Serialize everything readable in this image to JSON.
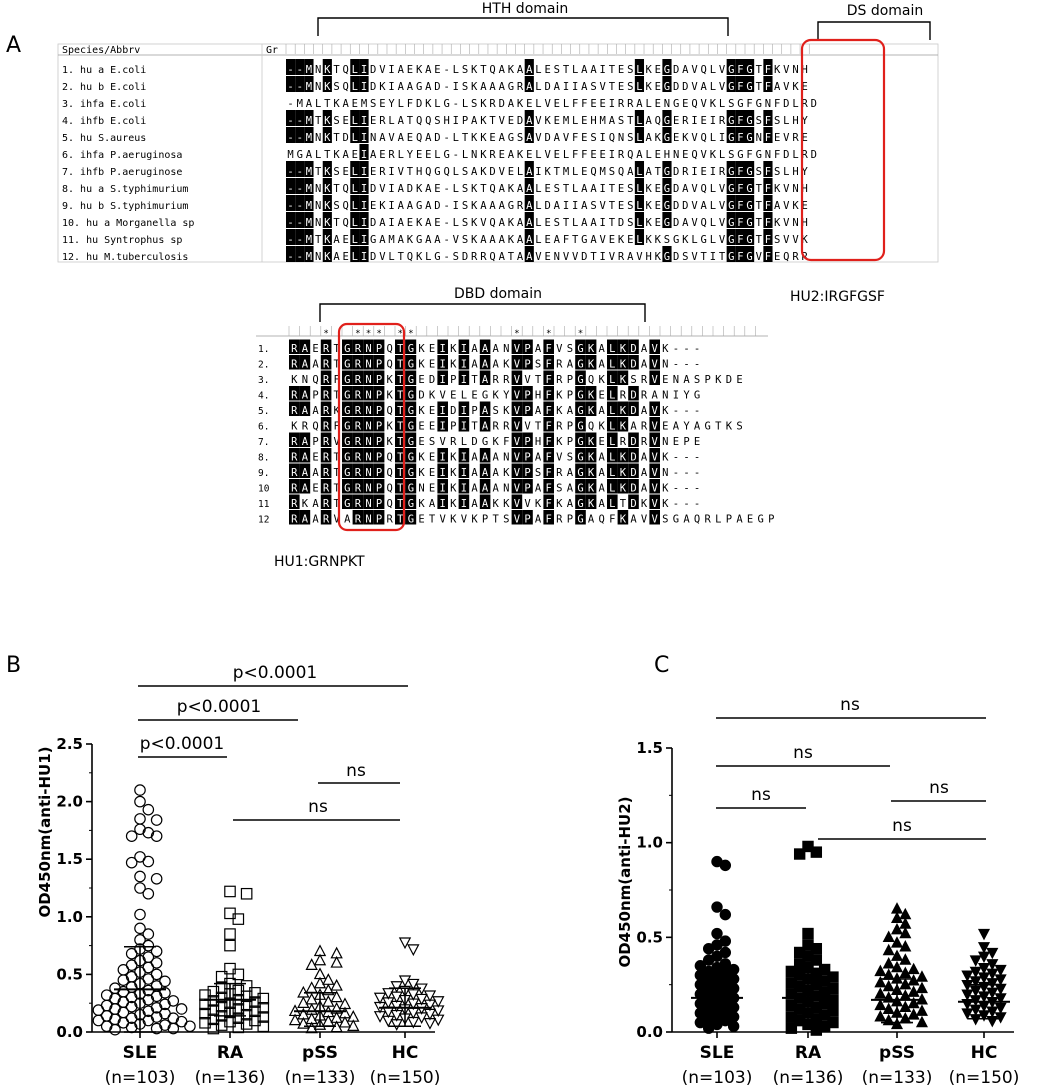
{
  "panel_labels": {
    "a": "A",
    "b": "B",
    "c": "C"
  },
  "alignment": {
    "header_species": "Species/Abbrv",
    "header_group": "Gr",
    "domains": {
      "hth": "HTH domain",
      "ds": "DS domain",
      "dbd": "DBD domain"
    },
    "motif_labels": {
      "hu2": "HU2:IRGFGSF",
      "hu1": "HU1:GRNPKT"
    },
    "species": [
      "1. hu a E.coli",
      "2. hu b E.coli",
      "3. ihfa E.coli",
      "4. ihfb E.coli",
      "5. hu S.aureus",
      "6. ihfa P.aeruginosa",
      "7. ihfb P.aeruginose",
      "8. hu a S.typhimurium",
      "9. hu b S.typhimurium",
      "10. hu a Morganella sp",
      "11. hu Syntrophus sp",
      "12. hu M.tuberculosis"
    ],
    "top_sequences": [
      "--MNKTQLIDVIAEKAE-LSKTQAKAALESTLAAITESLKEGDAVQLVGFGTFKVNH",
      "--MNKSQLIDKIAAGAD-ISKAAAGRALDAIIASVTESLKEGDDVALVGFGTFAVKE",
      "-MALTKAEMSEYLFDKLG-LSKRDAKELVELFFEEIRRALENGEQVKLSGFGNFDLRD",
      "--MTKSELIERLATQQSHIPAKTVEDAVKEMLEHMASTLAQGERIEIRGFGSFSLHY",
      "--MNKTDLINAVAEQAD-LTKKEAGSAVDAVFESIQNSLAKGEKVQLIGFGNFEVRE",
      "MGALTKAEIAERLYEELG-LNKREAKELVELFFEEIRQALEHNEQVKLSGFGNFDLRD",
      "--MTKSELIERIVTHQGQLSAKDVELAIKTMLEQMSQALATGDRIEIRGFGSFSLHY",
      "--MNKTQLIDVIADKAE-LSKTQAKAALESTLAAITESLKEGDAVQLVGFGTFKVNH",
      "--MNKSQLIEKIAAGAD-ISKAAAGRALDAIIASVTESLKEGDDVALVGFGTFAVKE",
      "--MNKTQLIDAIAEKAE-LSKVQAKAALESTLAAITDSLKEGDAVQLVGFGTFKVNH",
      "--MTKAELIGAMAKGAA-VSKAAAKAALEAFTGAVEKELKKSGKLGLVGFGTFSVVK",
      "--MNKAELIDVLTQKLG-SDRRQATAAVENVVDTIVRAVHKGDSVTITGFGVFEQRR"
    ],
    "bottom_row_numbers": [
      "1.",
      "2.",
      "3.",
      "4.",
      "5.",
      "6.",
      "7.",
      "8.",
      "9.",
      "10",
      "11",
      "12"
    ],
    "bottom_sequences": [
      "RAERTGRNPQTGKEIKIAAANVPAFVSGKALKDAVK---",
      "RAARTGRNPQTGKEIKIAAAKVPSFRAGKALKDAVN---",
      "KNQRFGRNPKTGEDIPITARRVVTFRPGQKLKSRVENASPKDE",
      "RAPRTGRNPKTGDKVELEGKYVPHFKPGKELRDRANIYG",
      "RAARKGRNPQTGKEIDIPASKVPAFKAGKALKDAVK---",
      "KRQRFGRNPKTGEEIPITARRVVTFRPGQKLKARVEAYAGTKS",
      "RAPRVGRNPKTGESVRLDGKFVPHFKPGKELRDRVNEPE",
      "RAERTGRNPQTGKEIKIAAANVPAFVSGKALKDAVK---",
      "RAARTGRNPQTGKEIKIAAAKVPSFRAGKALKDAVN---",
      "RAERTGRNPQTGNEIKIAAANVPAFSAGKALKDAVK---",
      "RKARTGRNPQTGKAIKIAAKKVVKFKAGKALTDKVK---",
      "RAARVARNPRTGETVKVKPTSVPAFRPGAQFKAVVSGAQRLPAEGP"
    ]
  },
  "panel_b": {
    "ylabel": "OD450nm(anti-HU1)",
    "groups": [
      "SLE",
      "RA",
      "pSS",
      "HC"
    ],
    "ns": [
      "(n=103)",
      "(n=136)",
      "(n=133)",
      "(n=150)"
    ],
    "comparisons": [
      "p<0.0001",
      "p<0.0001",
      "p<0.0001",
      "ns",
      "ns"
    ]
  },
  "panel_c": {
    "ylabel": "OD450nm(anti-HU2)",
    "groups": [
      "SLE",
      "RA",
      "pSS",
      "HC"
    ],
    "ns": [
      "(n=103)",
      "(n=136)",
      "(n=133)",
      "(n=150)"
    ],
    "comparisons": [
      "ns",
      "ns",
      "ns",
      "ns",
      "ns"
    ]
  },
  "chart_data": [
    {
      "type": "scatter",
      "title": "",
      "xlabel": "",
      "ylabel": "OD450nm(anti-HU1)",
      "ylim": [
        0,
        2.5
      ],
      "yticks": [
        "0.0",
        "0.5",
        "1.0",
        "1.5",
        "2.0",
        "2.5"
      ],
      "categories": [
        "SLE",
        "RA",
        "pSS",
        "HC"
      ],
      "sample_sizes": [
        103,
        136,
        133,
        150
      ],
      "markers": [
        "open-circle",
        "open-square",
        "open-triangle-up",
        "open-triangle-down"
      ],
      "mean": [
        0.37,
        0.28,
        0.18,
        0.21
      ],
      "sd_upper": [
        0.74,
        0.42,
        0.34,
        0.38
      ],
      "sd_lower": [
        0.0,
        0.14,
        0.05,
        0.05
      ],
      "series": [
        {
          "values": [
            2.1,
            2.0,
            1.93,
            1.85,
            1.84,
            1.76,
            1.73,
            1.7,
            1.7,
            1.52,
            1.48,
            1.47,
            1.35,
            1.33,
            1.25,
            1.2,
            1.02,
            0.9,
            0.85,
            0.8,
            0.75,
            0.72,
            0.7,
            0.68,
            0.65,
            0.62,
            0.6,
            0.58,
            0.56,
            0.54,
            0.52,
            0.5,
            0.48,
            0.46,
            0.45,
            0.44,
            0.42,
            0.4,
            0.39,
            0.38,
            0.36,
            0.35,
            0.34,
            0.33,
            0.32,
            0.31,
            0.3,
            0.29,
            0.28,
            0.27,
            0.26,
            0.25,
            0.24,
            0.23,
            0.22,
            0.21,
            0.2,
            0.2,
            0.19,
            0.18,
            0.17,
            0.16,
            0.15,
            0.14,
            0.13,
            0.12,
            0.12,
            0.11,
            0.1,
            0.1,
            0.09,
            0.08,
            0.07,
            0.06,
            0.05,
            0.05,
            0.04,
            0.03,
            0.03,
            0.02
          ]
        },
        {
          "values": [
            1.22,
            1.2,
            1.03,
            0.98,
            0.85,
            0.75,
            0.55,
            0.5,
            0.48,
            0.42,
            0.4,
            0.38,
            0.36,
            0.35,
            0.34,
            0.33,
            0.32,
            0.31,
            0.3,
            0.29,
            0.28,
            0.27,
            0.26,
            0.25,
            0.24,
            0.23,
            0.22,
            0.21,
            0.2,
            0.19,
            0.18,
            0.17,
            0.16,
            0.15,
            0.14,
            0.13,
            0.12,
            0.11,
            0.1,
            0.09,
            0.08,
            0.07,
            0.06,
            0.05,
            0.04,
            0.03
          ]
        },
        {
          "values": [
            0.7,
            0.68,
            0.62,
            0.6,
            0.58,
            0.5,
            0.45,
            0.42,
            0.4,
            0.38,
            0.36,
            0.34,
            0.32,
            0.3,
            0.28,
            0.26,
            0.25,
            0.24,
            0.22,
            0.2,
            0.19,
            0.18,
            0.17,
            0.16,
            0.15,
            0.14,
            0.13,
            0.12,
            0.11,
            0.1,
            0.09,
            0.08,
            0.07,
            0.06,
            0.05,
            0.04,
            0.03
          ]
        },
        {
          "values": [
            0.78,
            0.72,
            0.45,
            0.42,
            0.4,
            0.38,
            0.36,
            0.34,
            0.33,
            0.32,
            0.31,
            0.3,
            0.29,
            0.28,
            0.27,
            0.26,
            0.25,
            0.24,
            0.23,
            0.22,
            0.21,
            0.2,
            0.19,
            0.18,
            0.17,
            0.16,
            0.15,
            0.14,
            0.13,
            0.12,
            0.11,
            0.1,
            0.09,
            0.08,
            0.07
          ]
        }
      ]
    },
    {
      "type": "scatter",
      "title": "",
      "xlabel": "",
      "ylabel": "OD450nm(anti-HU2)",
      "ylim": [
        0,
        1.5
      ],
      "yticks": [
        "0.0",
        "0.5",
        "1.0",
        "1.5"
      ],
      "categories": [
        "SLE",
        "RA",
        "pSS",
        "HC"
      ],
      "sample_sizes": [
        103,
        136,
        133,
        150
      ],
      "markers": [
        "filled-circle",
        "filled-square",
        "filled-triangle-up",
        "filled-triangle-down"
      ],
      "mean": [
        0.18,
        0.18,
        0.17,
        0.16
      ],
      "sd_upper": [
        0.3,
        0.33,
        0.28,
        0.25
      ],
      "sd_lower": [
        0.05,
        0.04,
        0.05,
        0.07
      ],
      "series": [
        {
          "values": [
            0.9,
            0.88,
            0.66,
            0.62,
            0.52,
            0.48,
            0.46,
            0.44,
            0.42,
            0.4,
            0.38,
            0.36,
            0.35,
            0.34,
            0.33,
            0.32,
            0.31,
            0.3,
            0.29,
            0.28,
            0.27,
            0.26,
            0.25,
            0.24,
            0.23,
            0.22,
            0.21,
            0.2,
            0.19,
            0.18,
            0.17,
            0.16,
            0.15,
            0.14,
            0.13,
            0.12,
            0.11,
            0.1,
            0.09,
            0.08,
            0.07,
            0.06,
            0.05,
            0.04,
            0.03,
            0.02
          ]
        },
        {
          "values": [
            0.98,
            0.95,
            0.94,
            0.52,
            0.46,
            0.44,
            0.42,
            0.4,
            0.38,
            0.36,
            0.34,
            0.33,
            0.32,
            0.31,
            0.3,
            0.29,
            0.28,
            0.27,
            0.26,
            0.25,
            0.24,
            0.23,
            0.22,
            0.21,
            0.2,
            0.19,
            0.18,
            0.17,
            0.16,
            0.15,
            0.14,
            0.13,
            0.12,
            0.11,
            0.1,
            0.09,
            0.08,
            0.07,
            0.06,
            0.05,
            0.04,
            0.03,
            0.02,
            0.01
          ]
        },
        {
          "values": [
            0.65,
            0.62,
            0.6,
            0.57,
            0.54,
            0.52,
            0.5,
            0.47,
            0.45,
            0.43,
            0.4,
            0.38,
            0.36,
            0.34,
            0.33,
            0.32,
            0.31,
            0.3,
            0.29,
            0.28,
            0.27,
            0.26,
            0.25,
            0.24,
            0.23,
            0.22,
            0.21,
            0.2,
            0.19,
            0.18,
            0.17,
            0.16,
            0.15,
            0.14,
            0.13,
            0.12,
            0.11,
            0.1,
            0.09,
            0.08,
            0.07,
            0.06,
            0.05,
            0.04
          ]
        },
        {
          "values": [
            0.52,
            0.45,
            0.42,
            0.4,
            0.38,
            0.36,
            0.34,
            0.33,
            0.32,
            0.31,
            0.3,
            0.29,
            0.28,
            0.27,
            0.26,
            0.25,
            0.24,
            0.23,
            0.22,
            0.21,
            0.2,
            0.19,
            0.18,
            0.17,
            0.16,
            0.15,
            0.14,
            0.13,
            0.12,
            0.11,
            0.1,
            0.09,
            0.08,
            0.07,
            0.06
          ]
        }
      ]
    }
  ]
}
